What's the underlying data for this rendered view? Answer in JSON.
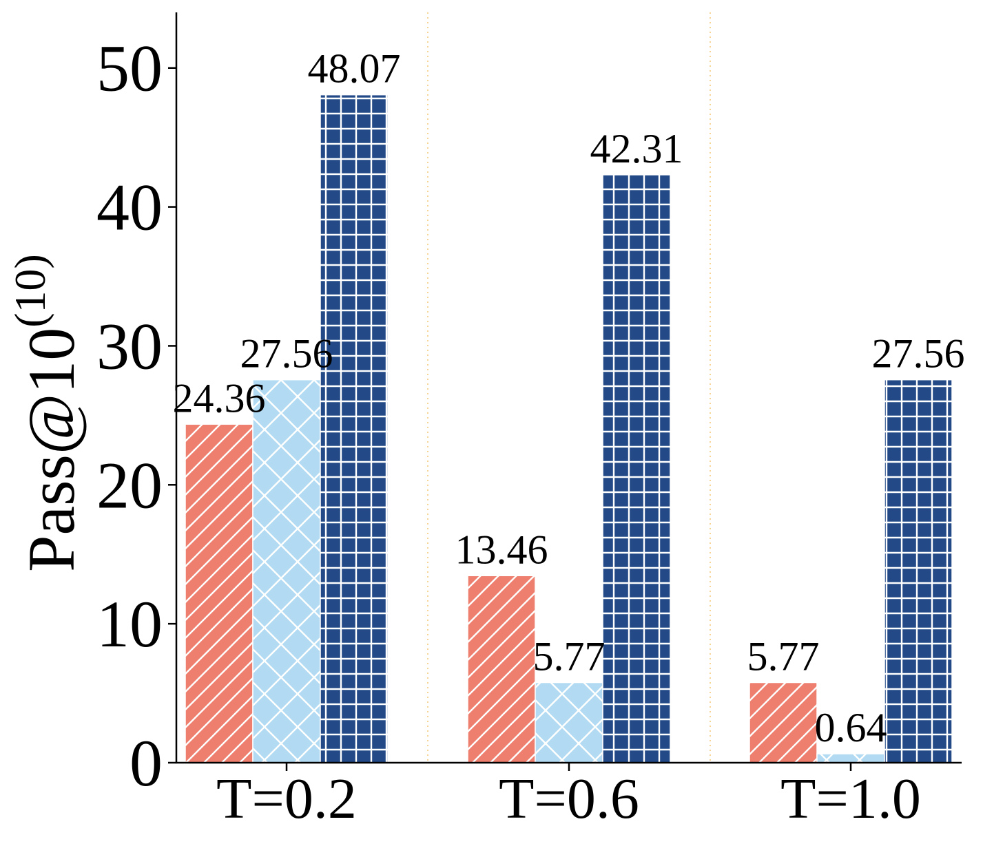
{
  "chart_data": {
    "type": "bar",
    "categories": [
      "T=0.2",
      "T=0.6",
      "T=1.0"
    ],
    "series": [
      {
        "values": [
          24.36,
          13.46,
          5.77
        ],
        "color": "#ee7e6e",
        "hatch": "diagonal"
      },
      {
        "values": [
          27.56,
          5.77,
          0.64
        ],
        "color": "#b2dbf3",
        "hatch": "cross"
      },
      {
        "values": [
          48.07,
          42.31,
          27.56
        ],
        "color": "#234a87",
        "hatch": "grid"
      }
    ],
    "value_labels": [
      [
        "24.36",
        "13.46",
        "5.77"
      ],
      [
        "27.56",
        "5.77",
        "0.64"
      ],
      [
        "48.07",
        "42.31",
        "27.56"
      ]
    ],
    "ylabel": "Pass@10",
    "ylabel_superscript": "(10)",
    "ylim": [
      0,
      54
    ],
    "yticks": [
      0,
      10,
      20,
      30,
      40,
      50
    ],
    "ytick_labels": [
      "0",
      "10",
      "20",
      "30",
      "40",
      "50"
    ],
    "separator_color": "#f5c97a",
    "grid": false,
    "legend": "none"
  }
}
